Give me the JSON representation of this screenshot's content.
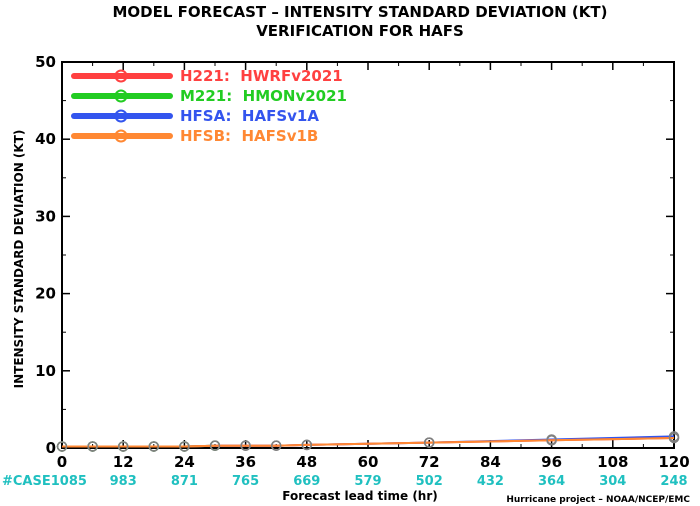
{
  "chart_data": {
    "type": "line",
    "title": "MODEL FORECAST – INTENSITY STANDARD DEVIATION (KT)",
    "subtitle": "VERIFICATION FOR HAFS",
    "xlabel": "Forecast lead time (hr)",
    "ylabel": "INTENSITY STANDARD DEVIATION (KT)",
    "xlim": [
      0,
      120
    ],
    "ylim": [
      0,
      50
    ],
    "x_ticks": [
      "0",
      "12",
      "24",
      "36",
      "48",
      "60",
      "72",
      "84",
      "96",
      "108",
      "120"
    ],
    "y_ticks": [
      "0",
      "10",
      "20",
      "30",
      "40",
      "50"
    ],
    "case_label": "#CASE1085",
    "case_counts": [
      "983",
      "871",
      "765",
      "669",
      "579",
      "502",
      "432",
      "364",
      "304",
      "248"
    ],
    "credit": "Hurricane project – NOAA/NCEP/EMC",
    "legend_placement": "top-left",
    "series": [
      {
        "name": "H221:  HWRFv2021",
        "color": "#ff4040",
        "x": [
          0,
          6,
          12,
          18,
          24,
          30,
          36,
          42,
          48,
          72,
          96,
          120
        ],
        "y": [
          0.2,
          0.2,
          0.2,
          0.2,
          0.2,
          0.3,
          0.3,
          0.3,
          0.4,
          0.7,
          1.0,
          1.3
        ]
      },
      {
        "name": "M221:  HMONv2021",
        "color": "#22cc22",
        "x": [
          0,
          6,
          12,
          18,
          24,
          30
        ],
        "y": [
          0.2,
          0.2,
          0.2,
          0.2,
          0.2,
          0.3
        ]
      },
      {
        "name": "HFSA:  HAFSv1A",
        "color": "#3355ee",
        "x": [
          0,
          6,
          12,
          18,
          24,
          30,
          36,
          42,
          48,
          72,
          96,
          120
        ],
        "y": [
          0.2,
          0.2,
          0.2,
          0.2,
          0.2,
          0.3,
          0.3,
          0.3,
          0.4,
          0.7,
          1.1,
          1.5
        ]
      },
      {
        "name": "HFSB:  HAFSv1B",
        "color": "#ff8833",
        "x": [
          0,
          6,
          12,
          18,
          24,
          30,
          36,
          42,
          48,
          72,
          96,
          120
        ],
        "y": [
          0.2,
          0.2,
          0.2,
          0.2,
          0.2,
          0.3,
          0.3,
          0.3,
          0.4,
          0.7,
          1.0,
          1.3
        ]
      }
    ],
    "marker_color": "#808080",
    "case_color": "#20c0c0"
  }
}
